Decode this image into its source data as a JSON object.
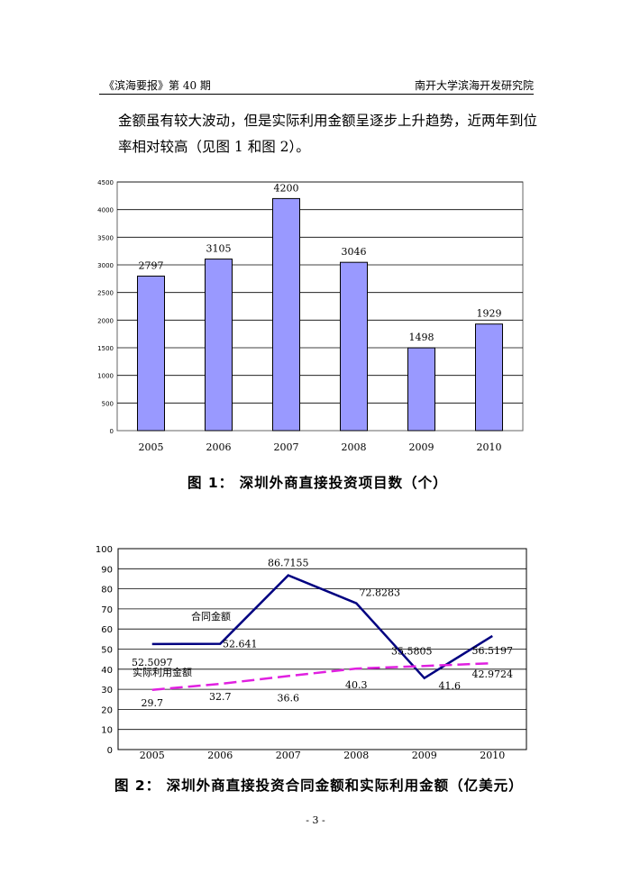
{
  "header": {
    "left": "《滨海要报》第 40 期",
    "right": "南开大学滨海开发研究院"
  },
  "paragraph": {
    "line1": "金额虽有较大波动，但是实际利用金额呈逐步上升趋势，近两年到位",
    "line2": "率相对较高（见图 1 和图 2）。"
  },
  "chart_data": [
    {
      "type": "bar",
      "categories": [
        "2005",
        "2006",
        "2007",
        "2008",
        "2009",
        "2010"
      ],
      "values": [
        2797,
        3105,
        4200,
        3046,
        1498,
        1929
      ],
      "ylim": [
        0,
        4500
      ],
      "yticks": [
        0,
        500,
        1000,
        1500,
        2000,
        2500,
        3000,
        3500,
        4000,
        4500
      ],
      "grid": true,
      "bar_color": "#9999ff",
      "caption": "图 1：  深圳外商直接投资项目数（个）"
    },
    {
      "type": "line",
      "categories": [
        "2005",
        "2006",
        "2007",
        "2008",
        "2009",
        "2010"
      ],
      "ylim": [
        0,
        100
      ],
      "yticks": [
        0,
        10,
        20,
        30,
        40,
        50,
        60,
        70,
        80,
        90,
        100
      ],
      "grid": true,
      "series": [
        {
          "name": "合同金额",
          "color": "#000080",
          "dashed": false,
          "values": [
            52.5097,
            52.641,
            86.7155,
            72.8283,
            35.5805,
            56.5197
          ],
          "labels": [
            "52.5097",
            "52.641",
            "86.7155",
            "72.8283",
            "35.5805",
            "56.5197"
          ]
        },
        {
          "name": "实际利用金额",
          "color": "#e020e0",
          "dashed": true,
          "values": [
            29.7,
            32.7,
            36.6,
            40.3,
            41.6,
            42.9724
          ],
          "labels": [
            "29.7",
            "32.7",
            "36.6",
            "40.3",
            "41.6",
            "42.9724"
          ]
        }
      ],
      "caption": "图 2：  深圳外商直接投资合同金额和实际利用金额（亿美元）"
    }
  ],
  "page_number": "- 3 -"
}
